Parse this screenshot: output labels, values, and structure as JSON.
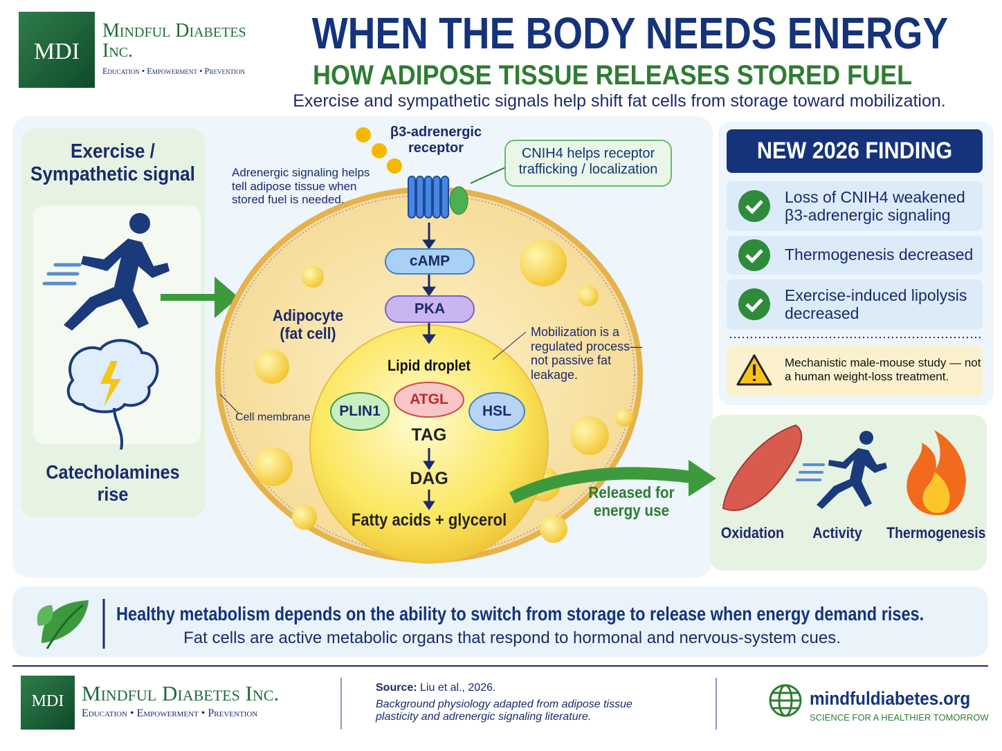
{
  "header": {
    "logo_mark": "MDI",
    "brand": "Mindful Diabetes Inc.",
    "tagline": "Education • Empowerment • Prevention",
    "title": "WHEN THE BODY NEEDS ENERGY",
    "subtitle": "HOW ADIPOSE TISSUE RELEASES STORED FUEL",
    "intro": "Exercise and sympathetic signals help shift fat cells from storage toward mobilization."
  },
  "left_panel": {
    "title": "Exercise / Sympathetic signal",
    "caption": "Catecholamines rise"
  },
  "cell": {
    "signaling_note": "Adrenergic signaling helps tell adipose tissue when stored fuel is needed.",
    "receptor": "β3-adrenergic receptor",
    "cnih4_note": "CNIH4 helps receptor trafficking / localization",
    "cascade": [
      "cAMP",
      "PKA"
    ],
    "adipocyte_label": "Adipocyte (fat cell)",
    "membrane_label": "Cell membrane",
    "droplet_label": "Lipid droplet",
    "proteins": [
      "PLIN1",
      "ATGL",
      "HSL"
    ],
    "lipolysis": [
      "TAG",
      "DAG",
      "Fatty acids + glycerol"
    ],
    "mobilization_note": "Mobilization is a regulated process—not passive fat leakage.",
    "release_label": "Released for energy use"
  },
  "finding": {
    "title": "NEW 2026 FINDING",
    "items": [
      "Loss of CNIH4 weakened β3-adrenergic signaling",
      "Thermogenesis decreased",
      "Exercise-induced lipolysis decreased"
    ],
    "caution": "Mechanistic male-mouse study — not a human weight-loss treatment."
  },
  "uses": [
    "Oxidation",
    "Activity",
    "Thermogenesis"
  ],
  "banner": {
    "headline": "Healthy metabolism depends on the ability to switch from storage to release when energy demand rises.",
    "text": "Fat cells are active metabolic organs that respond to hormonal and nervous-system cues."
  },
  "footer": {
    "logo_mark": "MDI",
    "brand": "Mindful Diabetes Inc.",
    "tagline": "Education • Empowerment • Prevention",
    "source_label": "Source:",
    "source": "Liu et al., 2026.",
    "source_note": "Background physiology adapted from adipose tissue plasticity and adrenergic signaling literature.",
    "website": "mindfuldiabetes.org",
    "website_tagline": "SCIENCE FOR A HEALTHIER TOMORROW"
  }
}
